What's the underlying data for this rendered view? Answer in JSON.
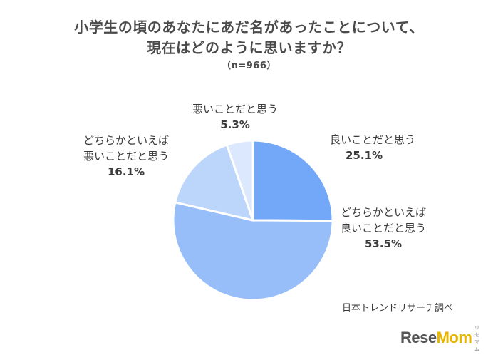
{
  "chart_data": {
    "type": "pie",
    "title_line1": "小学生の頃のあなたにあだ名があったことについて、",
    "title_line2": "現在はどのように思いますか？",
    "subtitle": "（n=966）",
    "slices": [
      {
        "label_line1": "良いことだと思う",
        "label_line2": "",
        "percent_text": "25.1%",
        "value": 25.1,
        "color": "#73a7f7"
      },
      {
        "label_line1": "どちらかといえば",
        "label_line2": "良いことだと思う",
        "percent_text": "53.5%",
        "value": 53.5,
        "color": "#97bef9"
      },
      {
        "label_line1": "どちらかといえば",
        "label_line2": "悪いことだと思う",
        "percent_text": "16.1%",
        "value": 16.1,
        "color": "#bcd5fb"
      },
      {
        "label_line1": "悪いことだと思う",
        "label_line2": "",
        "percent_text": "5.3%",
        "value": 5.3,
        "color": "#dbe8fd"
      }
    ],
    "source": "日本トレンドリサーチ調べ"
  },
  "logo": {
    "text_main": "ReseMom",
    "subtext": "リセマム"
  }
}
